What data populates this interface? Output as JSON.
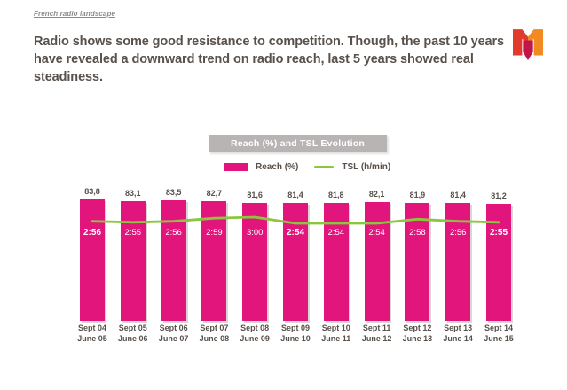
{
  "page": {
    "kicker": "French radio landscape",
    "title_lines": [
      "Radio shows some good resistance to competition. Though, the past 10 years",
      "have revealed a downward trend on radio reach, last 5 years showed real",
      "steadiness."
    ],
    "icons": {
      "logo": "mediametrie-m-icon"
    },
    "logo_colors": {
      "left": "#e23a2c",
      "right": "#f08a21",
      "arrow": "#c2154a"
    }
  },
  "chart": {
    "banner_title": "Reach (%) and TSL Evolution",
    "legend": [
      {
        "label": "Reach (%)",
        "swatch": "bar",
        "color": "#e1157c"
      },
      {
        "label": "TSL (h/min)",
        "swatch": "line",
        "color": "#8cc63e"
      }
    ]
  },
  "chart_data": {
    "type": "bar",
    "title": "Reach (%) and TSL Evolution",
    "grid": false,
    "legend_position": "top",
    "baseline": 0,
    "categories": [
      [
        "Sept 04",
        "June 05"
      ],
      [
        "Sept 05",
        "June 06"
      ],
      [
        "Sept 06",
        "June 07"
      ],
      [
        "Sept 07",
        "June 08"
      ],
      [
        "Sept 08",
        "June 09"
      ],
      [
        "Sept 09",
        "June 10"
      ],
      [
        "Sept 10",
        "June 11"
      ],
      [
        "Sept 11",
        "June 12"
      ],
      [
        "Sept 12",
        "June 13"
      ],
      [
        "Sept 13",
        "June 14"
      ],
      [
        "Sept 14",
        "June 15"
      ]
    ],
    "series": [
      {
        "name": "Reach (%)",
        "type": "bar",
        "color": "#e1157c",
        "values": [
          83.8,
          83.1,
          83.5,
          82.7,
          81.6,
          81.4,
          81.8,
          82.1,
          81.9,
          81.4,
          81.2
        ],
        "labels": [
          "83,8",
          "83,1",
          "83,5",
          "82,7",
          "81,6",
          "81,4",
          "81,8",
          "82,1",
          "81,9",
          "81,4",
          "81,2"
        ]
      },
      {
        "name": "TSL (h/min)",
        "type": "line",
        "color": "#8cc63e",
        "values": [
          "2:56",
          "2:55",
          "2:56",
          "2:59",
          "3:00",
          "2:54",
          "2:54",
          "2:54",
          "2:58",
          "2:56",
          "2:55"
        ],
        "minutes": [
          176,
          175,
          176,
          179,
          180,
          174,
          174,
          174,
          178,
          176,
          175
        ]
      }
    ],
    "bold_tsl_indices": [
      0,
      5,
      10
    ]
  }
}
